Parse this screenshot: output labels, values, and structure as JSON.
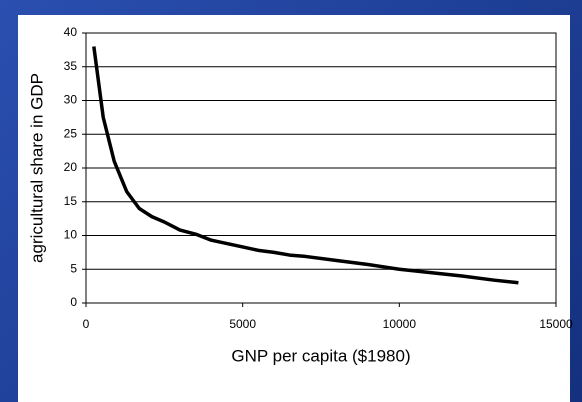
{
  "chart_data": {
    "type": "line",
    "x_label": "GNP per capita ($1980)",
    "y_label": "agricultural share in GDP",
    "x": [
      250,
      550,
      900,
      1300,
      1700,
      2100,
      2500,
      3000,
      3500,
      4000,
      4500,
      5000,
      5500,
      6000,
      6500,
      7000,
      8000,
      9000,
      10000,
      11000,
      12000,
      13000,
      13800
    ],
    "series": [
      {
        "name": "agricultural share",
        "color": "#000000",
        "values": [
          38,
          27.5,
          21,
          16.5,
          14,
          12.8,
          12,
          10.8,
          10.2,
          9.3,
          8.8,
          8.3,
          7.8,
          7.5,
          7.1,
          6.9,
          6.3,
          5.7,
          5,
          4.5,
          4,
          3.4,
          3
        ]
      }
    ],
    "xlim": [
      0,
      15000
    ],
    "xticks": [
      0,
      5000,
      10000,
      15000
    ],
    "ylim": [
      0,
      40
    ],
    "yticks": [
      0,
      5,
      10,
      15,
      20,
      25,
      30,
      35,
      40
    ],
    "grid": true
  }
}
